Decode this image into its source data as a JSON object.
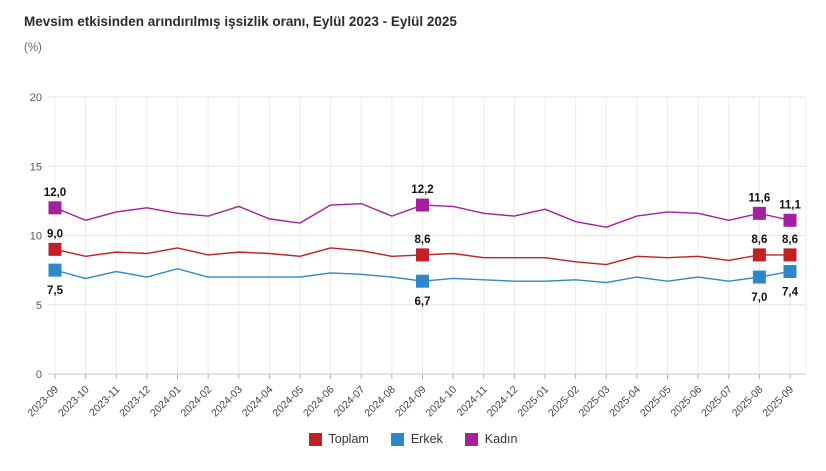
{
  "title": "Mevsim etkisinden arındırılmış işsizlik oranı, Eylül 2023 - Eylül 2025",
  "subtitle": "(%)",
  "chart_data": {
    "type": "line",
    "title": "Mevsim etkisinden arındırılmış işsizlik oranı, Eylül 2023 - Eylül 2025",
    "unit_label": "(%)",
    "grid": true,
    "legend_position": "bottom",
    "ylim": [
      0,
      20
    ],
    "yticks": [
      0,
      5,
      10,
      15,
      20
    ],
    "x": [
      "2023-09",
      "2023-10",
      "2023-11",
      "2023-12",
      "2024-01",
      "2024-02",
      "2024-03",
      "2024-04",
      "2024-05",
      "2024-06",
      "2024-07",
      "2024-08",
      "2024-09",
      "2024-10",
      "2024-11",
      "2024-12",
      "2025-01",
      "2025-02",
      "2025-03",
      "2025-04",
      "2025-05",
      "2025-06",
      "2025-07",
      "2025-08",
      "2025-09"
    ],
    "series": [
      {
        "id": "toplam",
        "name": "Toplam",
        "color": "#bf2126",
        "label_pos": "above",
        "values": [
          9.0,
          8.5,
          8.8,
          8.7,
          9.1,
          8.6,
          8.8,
          8.7,
          8.5,
          9.1,
          8.9,
          8.5,
          8.6,
          8.7,
          8.4,
          8.4,
          8.4,
          8.1,
          7.9,
          8.5,
          8.4,
          8.5,
          8.2,
          8.6,
          8.6
        ],
        "markers": [
          {
            "x": "2023-09",
            "label": "9,0"
          },
          {
            "x": "2024-09",
            "label": "8,6"
          },
          {
            "x": "2025-08",
            "label": "8,6"
          },
          {
            "x": "2025-09",
            "label": "8,6"
          }
        ]
      },
      {
        "id": "erkek",
        "name": "Erkek",
        "color": "#2e87c8",
        "label_pos": "below",
        "values": [
          7.5,
          6.9,
          7.4,
          7.0,
          7.6,
          7.0,
          7.0,
          7.0,
          7.0,
          7.3,
          7.2,
          7.0,
          6.7,
          6.9,
          6.8,
          6.7,
          6.7,
          6.8,
          6.6,
          7.0,
          6.7,
          7.0,
          6.7,
          7.0,
          7.4
        ],
        "markers": [
          {
            "x": "2023-09",
            "label": "7,5"
          },
          {
            "x": "2024-09",
            "label": "6,7"
          },
          {
            "x": "2025-08",
            "label": "7,0"
          },
          {
            "x": "2025-09",
            "label": "7,4"
          }
        ]
      },
      {
        "id": "kadin",
        "name": "Kadın",
        "color": "#a2219f",
        "label_pos": "above",
        "values": [
          12.0,
          11.1,
          11.7,
          12.0,
          11.6,
          11.4,
          12.1,
          11.2,
          10.9,
          12.2,
          12.3,
          11.4,
          12.2,
          12.1,
          11.6,
          11.4,
          11.9,
          11.0,
          10.6,
          11.4,
          11.7,
          11.6,
          11.1,
          11.6,
          11.1
        ],
        "markers": [
          {
            "x": "2023-09",
            "label": "12,0"
          },
          {
            "x": "2024-09",
            "label": "12,2"
          },
          {
            "x": "2025-08",
            "label": "11,6"
          },
          {
            "x": "2025-09",
            "label": "11,1"
          }
        ]
      }
    ]
  }
}
